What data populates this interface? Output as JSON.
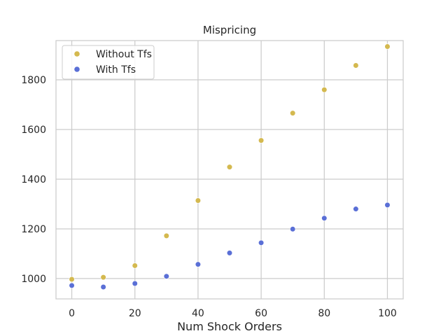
{
  "chart_data": {
    "type": "scatter",
    "title": "Mispricing",
    "xlabel": "Num Shock Orders",
    "ylabel": "",
    "xlim": [
      -5,
      105
    ],
    "ylim": [
      918,
      1958
    ],
    "xticks": [
      0,
      20,
      40,
      60,
      80,
      100
    ],
    "yticks": [
      1000,
      1200,
      1400,
      1600,
      1800
    ],
    "grid": true,
    "legend_position": "top-left",
    "x": [
      0,
      10,
      20,
      30,
      40,
      50,
      60,
      70,
      80,
      90,
      100
    ],
    "series": [
      {
        "name": "Without Tfs",
        "color": "#d4b94f",
        "values": [
          997,
          1005,
          1052,
          1172,
          1314,
          1449,
          1556,
          1666,
          1760,
          1858,
          1934
        ]
      },
      {
        "name": "With Tfs",
        "color": "#5a6fd6",
        "values": [
          972,
          966,
          980,
          1009,
          1057,
          1103,
          1144,
          1199,
          1243,
          1280,
          1296
        ]
      }
    ]
  }
}
